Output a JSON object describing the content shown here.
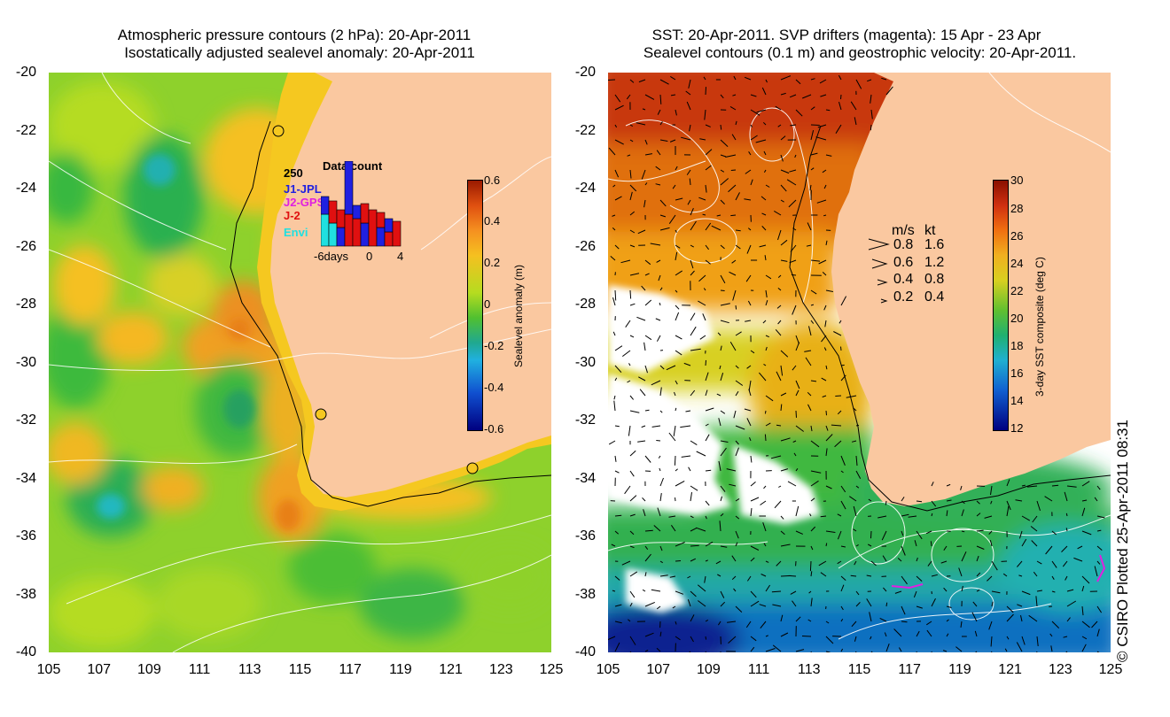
{
  "left_panel": {
    "title_line1": "Atmospheric pressure contours (2 hPa): 20-Apr-2011",
    "title_line2": "Isostatically adjusted sealevel anomaly: 20-Apr-2011",
    "colorbar": {
      "label": "Sealevel anomaly (m)",
      "ticks": [
        "0.6",
        "0.4",
        "0.2",
        "0",
        "-0.2",
        "-0.4",
        "-0.6"
      ],
      "range": [
        -0.6,
        0.6
      ]
    },
    "data_count": {
      "title": "Data count",
      "max_label": "250",
      "missions": [
        {
          "name": "J1-JPL",
          "color": "#2020e0"
        },
        {
          "name": "J2-GPS",
          "color": "#e020e0"
        },
        {
          "name": "J-2",
          "color": "#e01010"
        },
        {
          "name": "Envi",
          "color": "#20e0e0"
        }
      ],
      "xticks": [
        "-6days",
        "0",
        "4"
      ]
    }
  },
  "right_panel": {
    "title_line1": "SST: 20-Apr-2011. SVP drifters (magenta): 15 Apr - 23 Apr",
    "title_line2": "Sealevel contours (0.1 m) and geostrophic velocity: 20-Apr-2011.",
    "colorbar": {
      "label": "3-day SST composite (deg C)",
      "ticks": [
        "30",
        "28",
        "26",
        "24",
        "22",
        "20",
        "18",
        "16",
        "14",
        "12"
      ],
      "range": [
        12,
        30
      ]
    },
    "velocity_legend": {
      "header_ms": "m/s",
      "header_kt": "kt",
      "rows": [
        {
          "ms": "0.8",
          "kt": "1.6"
        },
        {
          "ms": "0.6",
          "kt": "1.2"
        },
        {
          "ms": "0.4",
          "kt": "0.8"
        },
        {
          "ms": "0.2",
          "kt": "0.4"
        }
      ]
    }
  },
  "axes": {
    "y_ticks": [
      "-20",
      "-22",
      "-24",
      "-26",
      "-28",
      "-30",
      "-32",
      "-34",
      "-36",
      "-38",
      "-40"
    ],
    "x_ticks": [
      "105",
      "107",
      "109",
      "111",
      "113",
      "115",
      "117",
      "119",
      "121",
      "123",
      "125"
    ]
  },
  "credit": "© CSIRO Plotted 25-Apr-2011 08:31",
  "colors": {
    "land": "#fac8a0",
    "background": "#ffffff"
  }
}
